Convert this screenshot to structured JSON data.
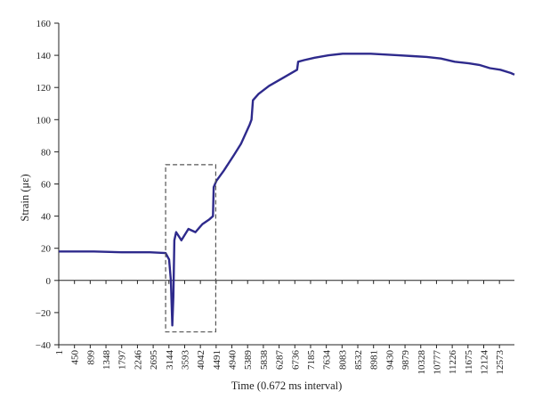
{
  "chart_data": {
    "type": "line",
    "ylabel": "Strain (με)",
    "xlabel": "Time (0.672 ms interval)",
    "xlim": [
      1,
      13000
    ],
    "ylim": [
      -40,
      160
    ],
    "y_ticks": [
      -40,
      -20,
      0,
      20,
      40,
      60,
      80,
      100,
      120,
      140,
      160
    ],
    "x_ticks": [
      1,
      450,
      899,
      1348,
      1797,
      2246,
      2695,
      3144,
      3593,
      4042,
      4491,
      4940,
      5389,
      5838,
      6287,
      6736,
      7185,
      7634,
      8083,
      8532,
      8981,
      9430,
      9879,
      10328,
      10777,
      11226,
      11675,
      12124,
      12573
    ],
    "grid": false,
    "legend": "none",
    "series": [
      {
        "color": "#2e2a8c",
        "x": [
          1,
          400,
          1000,
          1800,
          2600,
          3050,
          3150,
          3200,
          3240,
          3270,
          3300,
          3350,
          3500,
          3700,
          3900,
          4100,
          4300,
          4400,
          4420,
          4500,
          4700,
          5000,
          5200,
          5450,
          5500,
          5540,
          5700,
          6000,
          6400,
          6800,
          6830,
          7000,
          7300,
          7700,
          8100,
          8500,
          8900,
          9300,
          9700,
          10100,
          10500,
          10900,
          11300,
          11700,
          12000,
          12300,
          12600,
          12900,
          13000
        ],
        "y": [
          18,
          18,
          18,
          17.5,
          17.5,
          17,
          13,
          0,
          -28,
          -10,
          25,
          30,
          25,
          32,
          30,
          35,
          38,
          40,
          58,
          62,
          68,
          78,
          85,
          97,
          100,
          112,
          116,
          121,
          126,
          131,
          136,
          137,
          138.5,
          140,
          141,
          141,
          141,
          140.5,
          140,
          139.5,
          139,
          138,
          136,
          135,
          134,
          132,
          131,
          129,
          128
        ]
      }
    ],
    "annotations": [
      {
        "kind": "dashed-rectangle",
        "x": [
          3050,
          4480
        ],
        "y": [
          -32,
          72
        ]
      }
    ]
  }
}
